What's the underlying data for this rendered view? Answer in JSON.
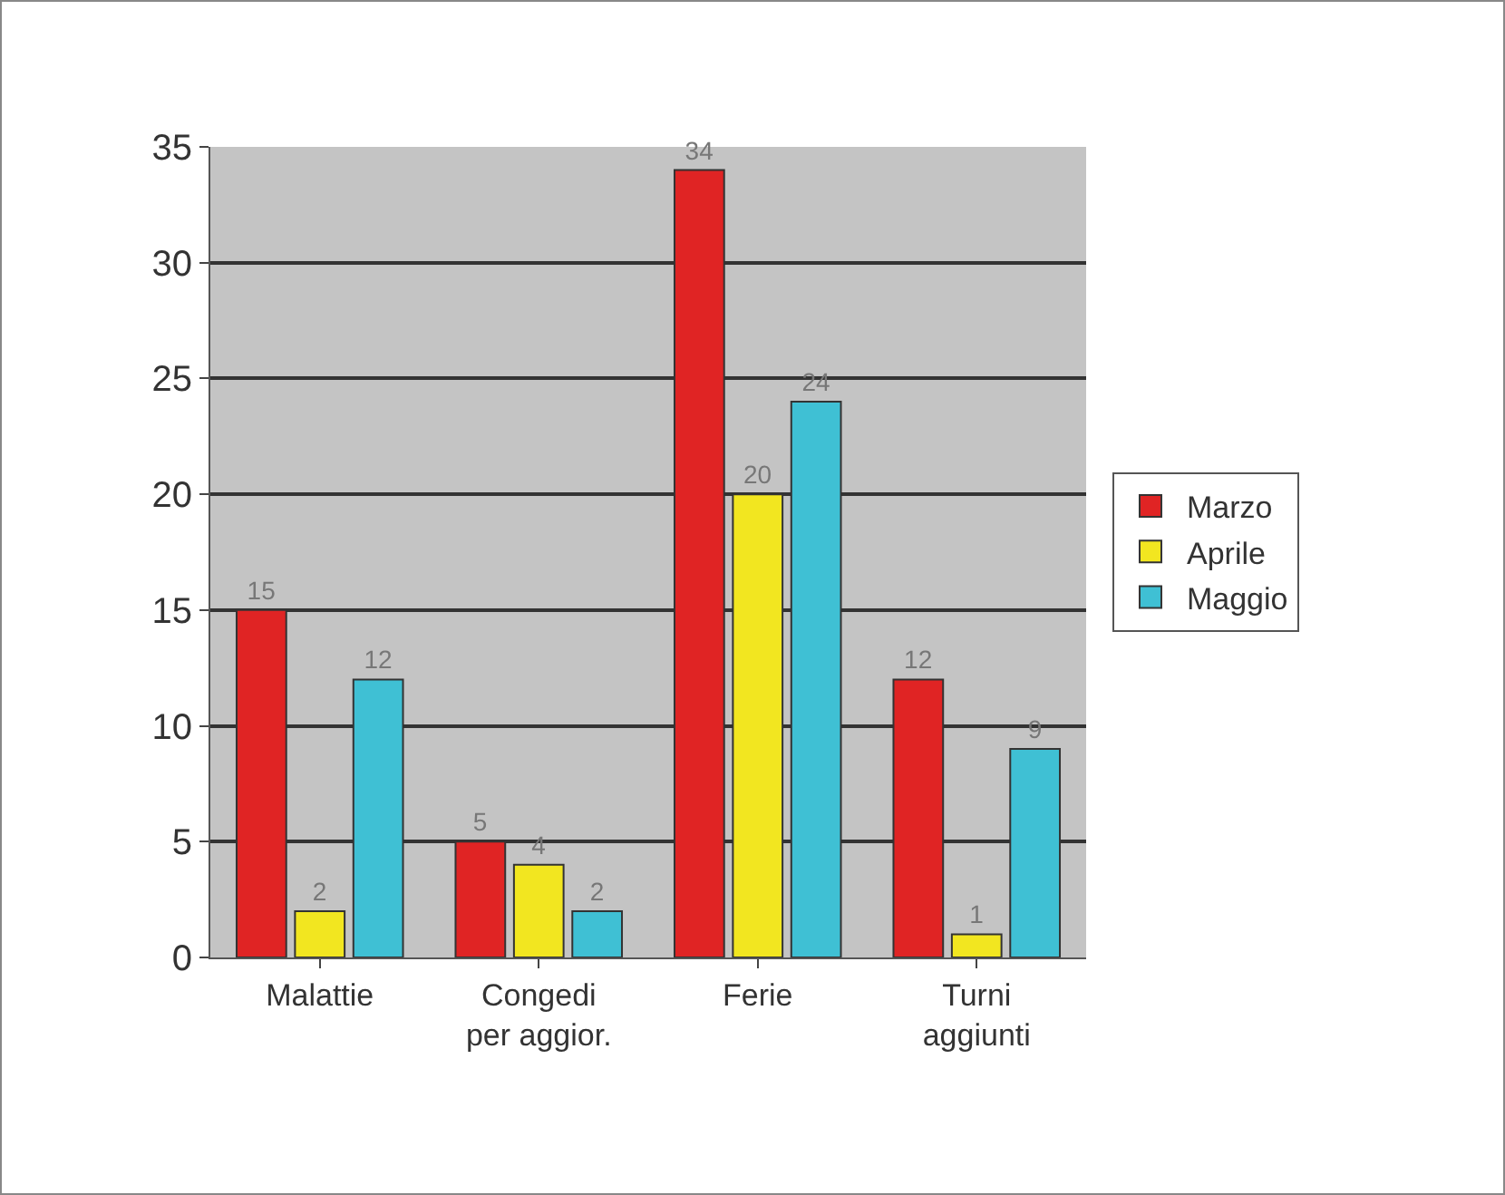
{
  "chart_data": {
    "type": "bar",
    "categories": [
      "Malattie",
      "Congedi\nper aggior.",
      "Ferie",
      "Turni\naggiunti"
    ],
    "series": [
      {
        "name": "Marzo",
        "color": "#e02424",
        "values": [
          15,
          5,
          34,
          12
        ]
      },
      {
        "name": "Aprile",
        "color": "#f2e620",
        "values": [
          2,
          4,
          20,
          1
        ]
      },
      {
        "name": "Maggio",
        "color": "#3fc0d4",
        "values": [
          12,
          2,
          24,
          9
        ]
      }
    ],
    "ylim": [
      0,
      35
    ],
    "yticks": [
      0,
      5,
      10,
      15,
      20,
      25,
      30,
      35
    ],
    "grid": "y",
    "legend": "right",
    "data_labels": true
  }
}
